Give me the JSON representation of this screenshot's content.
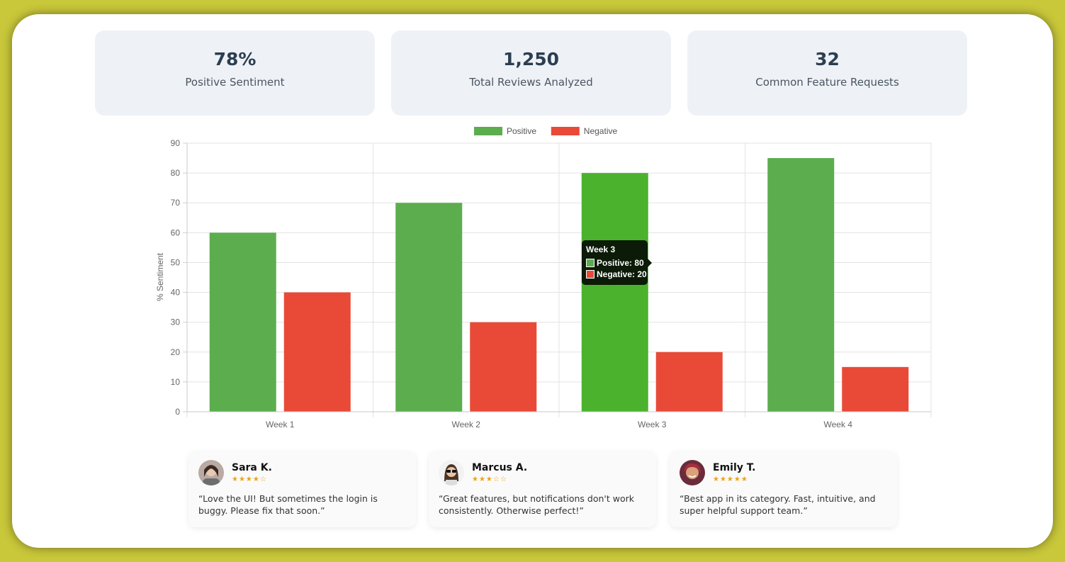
{
  "stats": [
    {
      "value": "78%",
      "label": "Positive Sentiment"
    },
    {
      "value": "1,250",
      "label": "Total Reviews Analyzed"
    },
    {
      "value": "32",
      "label": "Common Feature Requests"
    }
  ],
  "chart_data": {
    "type": "bar",
    "categories": [
      "Week 1",
      "Week 2",
      "Week 3",
      "Week 4"
    ],
    "series": [
      {
        "name": "Positive",
        "color": "#5cad4e",
        "values": [
          60,
          70,
          80,
          85
        ]
      },
      {
        "name": "Negative",
        "color": "#e84a37",
        "values": [
          40,
          30,
          20,
          15
        ]
      }
    ],
    "ylabel": "% Sentiment",
    "ylim": [
      0,
      90
    ],
    "yticks": [
      0,
      10,
      20,
      30,
      40,
      50,
      60,
      70,
      80,
      90
    ],
    "legend": "top-center",
    "highlight_color": "#4bb22d",
    "tooltip": {
      "title": "Week 3",
      "positive": "Positive: 80",
      "negative": "Negative: 20"
    }
  },
  "reviews": [
    {
      "name": "Sara K.",
      "stars": "★★★★☆",
      "text": "“Love the UI! But sometimes the login is buggy. Please fix that soon.”"
    },
    {
      "name": "Marcus A.",
      "stars": "★★★☆☆",
      "text": "“Great features, but notifications don't work consistently. Otherwise perfect!”"
    },
    {
      "name": "Emily T.",
      "stars": "★★★★★",
      "text": "“Best app in its category. Fast, intuitive, and super helpful support team.”"
    }
  ]
}
